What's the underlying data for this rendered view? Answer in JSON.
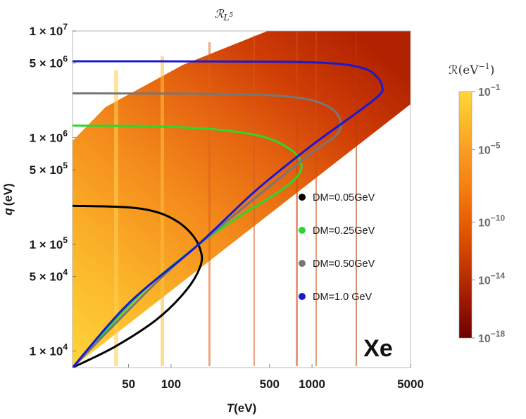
{
  "chart_data": {
    "type": "heatmap",
    "title": "ℛ",
    "title_subscript": "L",
    "title_sub_superscript": "5",
    "xlabel_italic": "T",
    "xlabel_rest": "(eV)",
    "ylabel_italic": "q",
    "ylabel_rest": "(eV)",
    "x_scale": "log",
    "y_scale": "log",
    "xlim": [
      20,
      5000
    ],
    "ylim": [
      7000,
      10000000
    ],
    "x_ticks": [
      {
        "value": 50,
        "label": "50"
      },
      {
        "value": 100,
        "label": "100"
      },
      {
        "value": 500,
        "label": "500"
      },
      {
        "value": 1000,
        "label": "1000"
      },
      {
        "value": 5000,
        "label": "5000"
      }
    ],
    "y_ticks": [
      {
        "value": 10000,
        "mantissa": "1",
        "exponent": "4"
      },
      {
        "value": 50000,
        "mantissa": "5",
        "exponent": "4"
      },
      {
        "value": 100000,
        "mantissa": "1",
        "exponent": "5"
      },
      {
        "value": 500000,
        "mantissa": "5",
        "exponent": "5"
      },
      {
        "value": 1000000,
        "mantissa": "1",
        "exponent": "6"
      },
      {
        "value": 5000000,
        "mantissa": "5",
        "exponent": "6"
      },
      {
        "value": 10000000,
        "mantissa": "1",
        "exponent": "7"
      }
    ],
    "times_symbol": "×",
    "tick_base": "10",
    "colorbar": {
      "title": "ℛ(eV",
      "title_exponent": "−1",
      "title_close": ")",
      "ticks": [
        {
          "value": -1,
          "base": "10",
          "exponent": "−1"
        },
        {
          "value": -5,
          "base": "10",
          "exponent": "−5"
        },
        {
          "value": -10,
          "base": "10",
          "exponent": "−10"
        },
        {
          "value": -14,
          "base": "10",
          "exponent": "−14"
        },
        {
          "value": -18,
          "base": "10",
          "exponent": "−18"
        }
      ],
      "range_log10": [
        -18,
        -1
      ],
      "colors": [
        "#6e0000",
        "#9c1a00",
        "#c53a00",
        "#e45a00",
        "#f57d10",
        "#f89a22",
        "#fcc02c",
        "#ffd63a"
      ]
    },
    "series": [
      {
        "name": "DM=0.05GeV",
        "color": "#000000",
        "points": [
          [
            20,
            230000
          ],
          [
            50,
            222000
          ],
          [
            80,
            200000
          ],
          [
            110,
            165000
          ],
          [
            140,
            125000
          ],
          [
            160,
            92000
          ],
          [
            163,
            65000
          ],
          [
            130,
            38000
          ],
          [
            80,
            20000
          ],
          [
            40,
            11000
          ],
          [
            20,
            7000
          ]
        ]
      },
      {
        "name": "DM=0.25GeV",
        "color": "#2ed62e",
        "points": [
          [
            20,
            1300000
          ],
          [
            50,
            1290000
          ],
          [
            100,
            1260000
          ],
          [
            200,
            1200000
          ],
          [
            400,
            1060000
          ],
          [
            600,
            880000
          ],
          [
            800,
            660000
          ],
          [
            820,
            470000
          ],
          [
            600,
            320000
          ],
          [
            300,
            180000
          ],
          [
            150,
            95000
          ],
          [
            60,
            34000
          ],
          [
            20,
            7000
          ]
        ]
      },
      {
        "name": "DM=0.50GeV",
        "color": "#777777",
        "points": [
          [
            20,
            2600000
          ],
          [
            100,
            2590000
          ],
          [
            300,
            2560000
          ],
          [
            600,
            2460000
          ],
          [
            1000,
            2240000
          ],
          [
            1400,
            1850000
          ],
          [
            1600,
            1400000
          ],
          [
            1500,
            1070000
          ],
          [
            1000,
            720000
          ],
          [
            500,
            350000
          ],
          [
            200,
            130000
          ],
          [
            80,
            45000
          ],
          [
            20,
            7000
          ]
        ]
      },
      {
        "name": "DM=1.0 GeV",
        "color": "#1a1ad0",
        "points": [
          [
            20,
            5200000
          ],
          [
            200,
            5190000
          ],
          [
            800,
            5120000
          ],
          [
            1600,
            4900000
          ],
          [
            2400,
            4400000
          ],
          [
            2900,
            3700000
          ],
          [
            3150,
            3000000
          ],
          [
            3000,
            2500000
          ],
          [
            2000,
            1650000
          ],
          [
            1000,
            850000
          ],
          [
            400,
            320000
          ],
          [
            150,
            95000
          ],
          [
            50,
            28000
          ],
          [
            20,
            7000
          ]
        ]
      }
    ],
    "annotation": "Xe"
  }
}
